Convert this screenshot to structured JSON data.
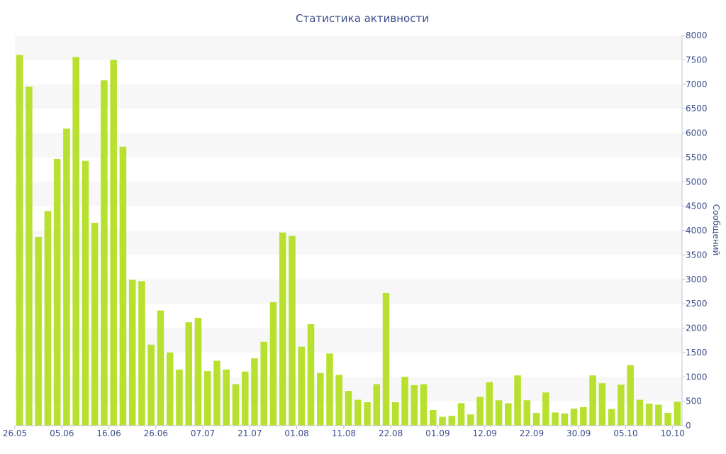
{
  "chart_data": {
    "type": "bar",
    "title": "Статистика активности",
    "xlabel": "",
    "ylabel": "Сообщений",
    "ylim": [
      0,
      8000
    ],
    "yticks": [
      0,
      500,
      1000,
      1500,
      2000,
      2500,
      3000,
      3500,
      4000,
      4500,
      5000,
      5500,
      6000,
      6500,
      7000,
      7500,
      8000
    ],
    "y_axis_side": "right",
    "grid": "alternating horizontal bands",
    "legend": "none",
    "bar_color": "#b8e02e",
    "band_color": "#f7f7f7",
    "text_color": "#3d4f8a",
    "x_ticks": [
      {
        "label": "26.05",
        "index": 0
      },
      {
        "label": "05.06",
        "index": 5
      },
      {
        "label": "16.06",
        "index": 10
      },
      {
        "label": "26.06",
        "index": 15
      },
      {
        "label": "07.07",
        "index": 20
      },
      {
        "label": "21.07",
        "index": 25
      },
      {
        "label": "01.08",
        "index": 30
      },
      {
        "label": "11.08",
        "index": 35
      },
      {
        "label": "22.08",
        "index": 40
      },
      {
        "label": "01.09",
        "index": 45
      },
      {
        "label": "12.09",
        "index": 50
      },
      {
        "label": "22.09",
        "index": 55
      },
      {
        "label": "30.09",
        "index": 60
      },
      {
        "label": "05.10",
        "index": 65
      },
      {
        "label": "10.10",
        "index": 70
      }
    ],
    "values": [
      7600,
      6950,
      3870,
      4400,
      5470,
      6090,
      7560,
      5430,
      4160,
      7080,
      7500,
      5720,
      2990,
      2960,
      1660,
      2360,
      1500,
      1150,
      2120,
      2210,
      1120,
      1330,
      1150,
      850,
      1110,
      1380,
      1720,
      2530,
      3960,
      3890,
      1620,
      2080,
      1080,
      1480,
      1040,
      710,
      530,
      480,
      850,
      2720,
      480,
      1000,
      830,
      850,
      320,
      180,
      200,
      460,
      230,
      590,
      890,
      520,
      460,
      1030,
      520,
      260,
      680,
      270,
      250,
      350,
      380,
      1030,
      870,
      340,
      840,
      1240,
      530,
      450,
      430,
      260,
      490
    ]
  }
}
